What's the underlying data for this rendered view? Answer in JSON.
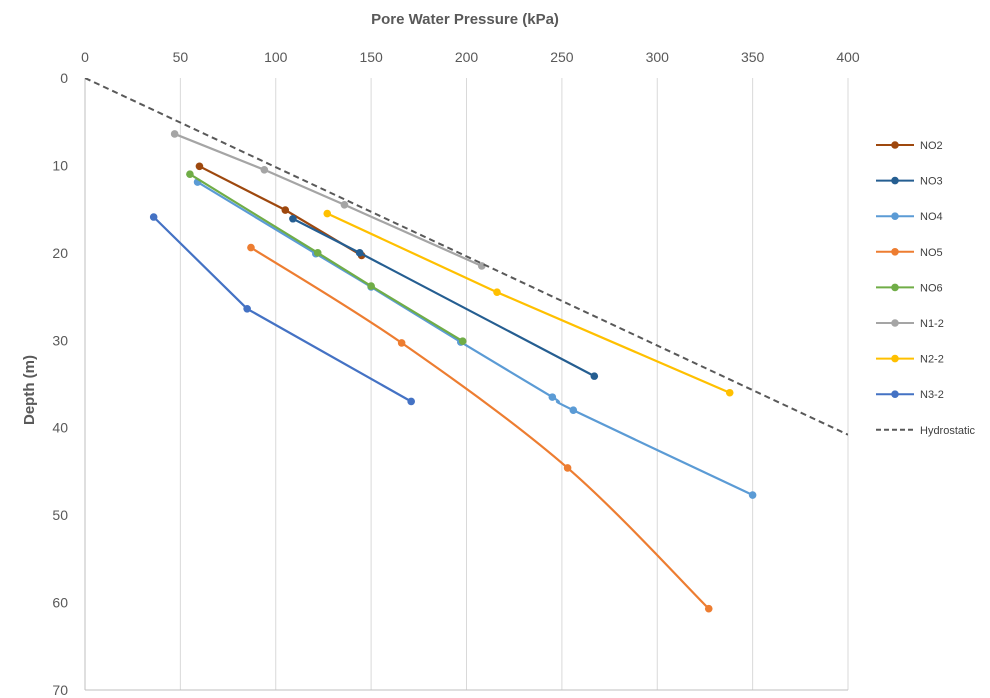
{
  "chart_data": {
    "type": "line",
    "xlabel": "Pore Water Pressure (kPa)",
    "ylabel": "Depth (m)",
    "xlim": [
      0,
      400
    ],
    "ylim": [
      0,
      70
    ],
    "y_inverted": true,
    "x_axis_position": "top",
    "x_ticks": [
      "0",
      "50",
      "100",
      "150",
      "200",
      "250",
      "300",
      "350",
      "400"
    ],
    "y_ticks": [
      "0",
      "10",
      "20",
      "30",
      "40",
      "50",
      "60",
      "70"
    ],
    "grid": "vertical",
    "legend_position": "right",
    "series": [
      {
        "name": "NO2",
        "color": "#9E480E",
        "smooth": false,
        "markers": true,
        "points": [
          [
            60,
            10.1
          ],
          [
            105,
            15.1
          ],
          [
            145,
            20.3
          ]
        ]
      },
      {
        "name": "NO3",
        "color": "#255E91",
        "smooth": false,
        "markers": true,
        "points": [
          [
            109,
            16.1
          ],
          [
            144,
            20.0
          ],
          [
            267,
            34.1
          ]
        ]
      },
      {
        "name": "NO4",
        "color": "#5B9BD5",
        "smooth": true,
        "markers": true,
        "points": [
          [
            59,
            11.9
          ],
          [
            121,
            20.1
          ],
          [
            150,
            23.9
          ],
          [
            197,
            30.2
          ],
          [
            245,
            36.5
          ],
          [
            256,
            38.0
          ],
          [
            350,
            47.7
          ]
        ]
      },
      {
        "name": "NO5",
        "color": "#ED7D31",
        "smooth": true,
        "markers": true,
        "points": [
          [
            87,
            19.4
          ],
          [
            166,
            30.3
          ],
          [
            253,
            44.6
          ],
          [
            327,
            60.7
          ]
        ]
      },
      {
        "name": "NO6",
        "color": "#70AD47",
        "smooth": false,
        "markers": true,
        "points": [
          [
            55,
            11.0
          ],
          [
            122,
            20.0
          ],
          [
            150,
            23.8
          ],
          [
            198,
            30.1
          ]
        ]
      },
      {
        "name": "N1-2",
        "color": "#A5A5A5",
        "smooth": false,
        "markers": true,
        "points": [
          [
            47,
            6.4
          ],
          [
            94,
            10.5
          ],
          [
            136,
            14.5
          ],
          [
            208,
            21.5
          ]
        ]
      },
      {
        "name": "N2-2",
        "color": "#FFC000",
        "smooth": false,
        "markers": true,
        "points": [
          [
            127,
            15.5
          ],
          [
            216,
            24.5
          ],
          [
            338,
            36.0
          ]
        ]
      },
      {
        "name": "N3-2",
        "color": "#4472C4",
        "smooth": false,
        "markers": true,
        "points": [
          [
            36,
            15.9
          ],
          [
            85,
            26.4
          ],
          [
            171,
            37.0
          ]
        ]
      },
      {
        "name": "Hydrostatic",
        "color": "#595959",
        "dashed": true,
        "markers": false,
        "smooth": false,
        "points": [
          [
            0,
            0
          ],
          [
            400,
            40.8
          ]
        ]
      }
    ]
  }
}
